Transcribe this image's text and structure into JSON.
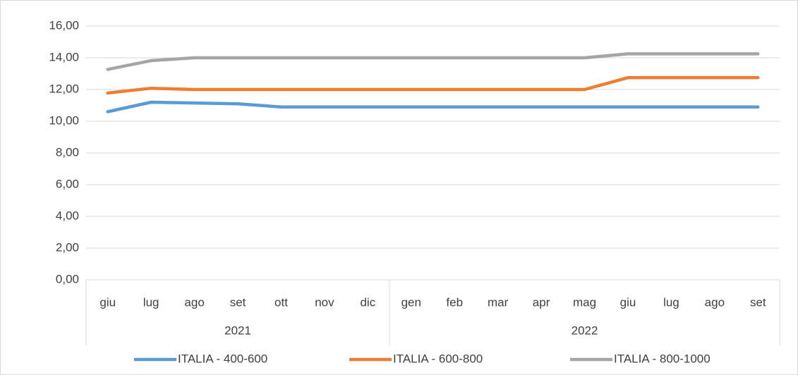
{
  "chart_data": {
    "type": "line",
    "categories": [
      "giu",
      "lug",
      "ago",
      "set",
      "ott",
      "nov",
      "dic",
      "gen",
      "feb",
      "mar",
      "apr",
      "mag",
      "giu",
      "lug",
      "ago",
      "set"
    ],
    "groups": [
      {
        "name": "2021",
        "span": 7
      },
      {
        "name": "2022",
        "span": 9
      }
    ],
    "series": [
      {
        "name": "ITALIA - 400-600",
        "color": "#5b9bd5",
        "values": [
          10.6,
          11.2,
          11.15,
          11.1,
          10.9,
          10.9,
          10.9,
          10.9,
          10.9,
          10.9,
          10.9,
          10.9,
          10.9,
          10.9,
          10.9,
          10.9
        ]
      },
      {
        "name": "ITALIA - 600-800",
        "color": "#ed7d31",
        "values": [
          11.78,
          12.08,
          12.0,
          12.0,
          12.0,
          12.0,
          12.0,
          12.0,
          12.0,
          12.0,
          12.0,
          12.0,
          12.75,
          12.75,
          12.75,
          12.75
        ]
      },
      {
        "name": "ITALIA - 800-1000",
        "color": "#a5a5a5",
        "values": [
          13.27,
          13.82,
          14.0,
          14.0,
          14.0,
          14.0,
          14.0,
          14.0,
          14.0,
          14.0,
          14.0,
          14.0,
          14.25,
          14.25,
          14.25,
          14.25
        ]
      }
    ],
    "ylim": [
      0,
      16
    ],
    "yticks": [
      {
        "value": 0,
        "label": "0,00"
      },
      {
        "value": 2,
        "label": "2,00"
      },
      {
        "value": 4,
        "label": "4,00"
      },
      {
        "value": 6,
        "label": "6,00"
      },
      {
        "value": 8,
        "label": "8,00"
      },
      {
        "value": 10,
        "label": "10,00"
      },
      {
        "value": 12,
        "label": "12,00"
      },
      {
        "value": 14,
        "label": "14,00"
      },
      {
        "value": 16,
        "label": "16,00"
      }
    ],
    "grid": true,
    "legend": "bottom"
  }
}
